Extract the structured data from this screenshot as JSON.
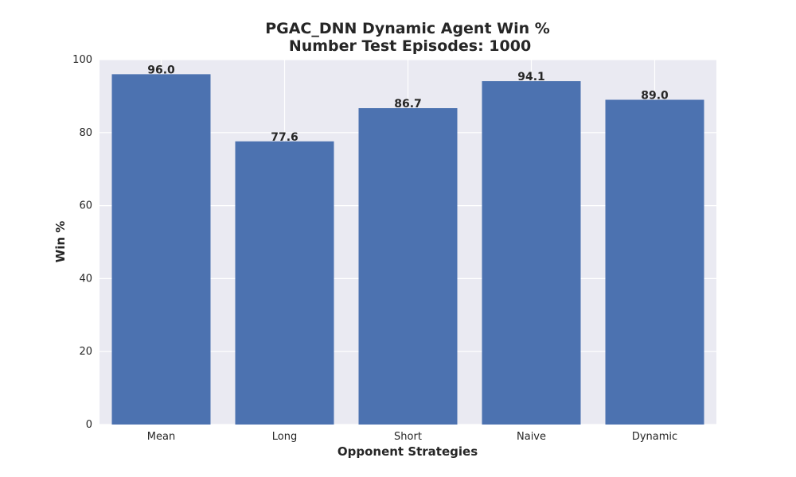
{
  "chart_data": {
    "type": "bar",
    "title": "PGAC_DNN Dynamic Agent Win %",
    "subtitle": "Number Test Episodes: 1000",
    "xlabel": "Opponent Strategies",
    "ylabel": "Win %",
    "categories": [
      "Mean",
      "Long",
      "Short",
      "Naive",
      "Dynamic"
    ],
    "values": [
      96.0,
      77.6,
      86.7,
      94.1,
      89.0
    ],
    "value_labels": [
      "96.0",
      "77.6",
      "86.7",
      "94.1",
      "89.0"
    ],
    "ylim": [
      0,
      100
    ],
    "yticks": [
      0,
      20,
      40,
      60,
      80,
      100
    ],
    "grid": true,
    "colors": {
      "bar": "#4c72b0",
      "plot_background": "#eaeaf2",
      "grid": "#ffffff",
      "text": "#262626"
    }
  }
}
